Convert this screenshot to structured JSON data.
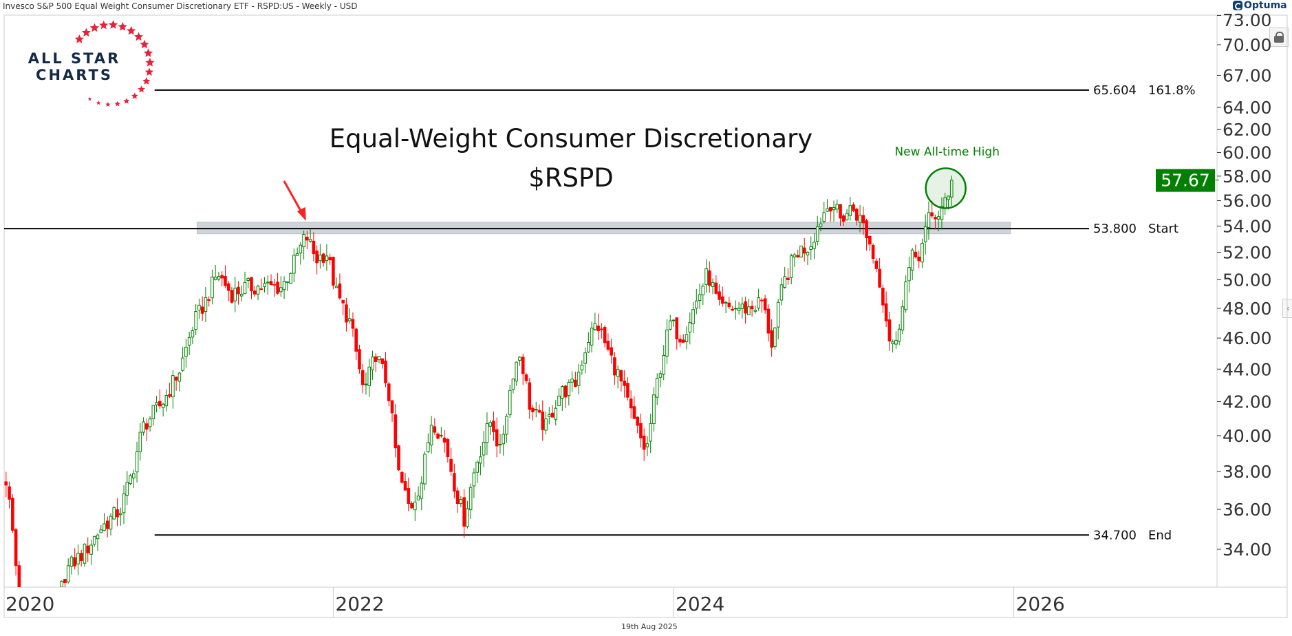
{
  "header": {
    "instrument": "Invesco S&P 500 Equal Weight Consumer Discretionary ETF - RSPD:US - Weekly - USD",
    "brand": "Optuma"
  },
  "logo": {
    "line1": "ALL STAR",
    "line2": "CHARTS"
  },
  "footer": {
    "date": "19th Aug 2025"
  },
  "colors": {
    "up": "#008000",
    "down": "#ff0000",
    "level": "#000000",
    "band": "#cfd4da",
    "accent_green": "#008000",
    "arrow": "#ff2020"
  },
  "chart_data": {
    "type": "candlestick",
    "title": "Equal-Weight Consumer Discretionary",
    "subtitle": "$RSPD",
    "frequency": "Weekly",
    "y_scale": "log",
    "ylim": [
      32,
      73
    ],
    "y_ticks": [
      34,
      36,
      38,
      40,
      42,
      44,
      46,
      48,
      50,
      52,
      54,
      56,
      58,
      60,
      62,
      64,
      67,
      70,
      73
    ],
    "y_tick_labels": [
      "34.00",
      "36.00",
      "38.00",
      "40.00",
      "42.00",
      "44.00",
      "46.00",
      "48.00",
      "50.00",
      "52.00",
      "54.00",
      "56.00",
      "58.00",
      "60.00",
      "62.00",
      "64.00",
      "67.00",
      "70.00",
      "73.00"
    ],
    "x_ticks": [
      2020,
      2022,
      2024,
      2026
    ],
    "x_tick_labels": [
      "2020",
      "2022",
      "2024",
      "2026"
    ],
    "last_price": 57.67,
    "last_price_label": "57.67",
    "levels": [
      {
        "value": 65.604,
        "value_label": "65.604",
        "name": "161.8%",
        "from": 2020.95
      },
      {
        "value": 53.8,
        "value_label": "53.800",
        "name": "Start",
        "from": 2020.0
      },
      {
        "value": 34.7,
        "value_label": "34.700",
        "name": "End",
        "from": 2020.95
      }
    ],
    "resistance_band": {
      "low": 53.4,
      "high": 54.3,
      "from": 2021.2,
      "to": 2025.98
    },
    "annotations": [
      {
        "type": "arrow",
        "text": "",
        "target_date": 2021.84,
        "target_price": 54.4
      },
      {
        "type": "circle",
        "text": "New All-time High",
        "date": 2025.6,
        "price": 57.0
      }
    ],
    "close_path": [
      [
        2020.0,
        37
      ],
      [
        2020.08,
        37.5
      ],
      [
        2020.15,
        32
      ],
      [
        2020.22,
        25
      ],
      [
        2020.3,
        29
      ],
      [
        2020.43,
        33
      ],
      [
        2020.55,
        34
      ],
      [
        2020.63,
        35
      ],
      [
        2020.75,
        36
      ],
      [
        2020.82,
        38
      ],
      [
        2020.88,
        40.5
      ],
      [
        2021.0,
        42
      ],
      [
        2021.1,
        44
      ],
      [
        2021.18,
        47
      ],
      [
        2021.25,
        48.5
      ],
      [
        2021.32,
        50.5
      ],
      [
        2021.4,
        49
      ],
      [
        2021.5,
        49.5
      ],
      [
        2021.6,
        49.5
      ],
      [
        2021.7,
        49.5
      ],
      [
        2021.78,
        51.5
      ],
      [
        2021.84,
        53.3
      ],
      [
        2021.9,
        51.5
      ],
      [
        2021.96,
        52
      ],
      [
        2022.02,
        49
      ],
      [
        2022.1,
        47
      ],
      [
        2022.18,
        42.5
      ],
      [
        2022.25,
        45
      ],
      [
        2022.32,
        43
      ],
      [
        2022.38,
        38
      ],
      [
        2022.45,
        36
      ],
      [
        2022.52,
        37.5
      ],
      [
        2022.58,
        41
      ],
      [
        2022.66,
        39.5
      ],
      [
        2022.72,
        37
      ],
      [
        2022.77,
        35.5
      ],
      [
        2022.84,
        38.5
      ],
      [
        2022.93,
        41
      ],
      [
        2022.98,
        39
      ],
      [
        2023.06,
        44
      ],
      [
        2023.1,
        45
      ],
      [
        2023.16,
        41.5
      ],
      [
        2023.25,
        40.5
      ],
      [
        2023.33,
        42.5
      ],
      [
        2023.42,
        43
      ],
      [
        2023.5,
        46
      ],
      [
        2023.55,
        47
      ],
      [
        2023.62,
        45
      ],
      [
        2023.68,
        43.5
      ],
      [
        2023.76,
        41
      ],
      [
        2023.84,
        39
      ],
      [
        2023.9,
        43
      ],
      [
        2023.98,
        47
      ],
      [
        2024.05,
        46
      ],
      [
        2024.12,
        48
      ],
      [
        2024.2,
        50.5
      ],
      [
        2024.27,
        48
      ],
      [
        2024.35,
        48
      ],
      [
        2024.45,
        48
      ],
      [
        2024.52,
        48.5
      ],
      [
        2024.58,
        45.5
      ],
      [
        2024.64,
        49.5
      ],
      [
        2024.72,
        52
      ],
      [
        2024.8,
        52.5
      ],
      [
        2024.88,
        55
      ],
      [
        2024.93,
        56
      ],
      [
        2024.98,
        54.5
      ],
      [
        2025.05,
        55.5
      ],
      [
        2025.12,
        54
      ],
      [
        2025.18,
        51.5
      ],
      [
        2025.22,
        49.5
      ],
      [
        2025.27,
        46
      ],
      [
        2025.31,
        45.5
      ],
      [
        2025.35,
        49
      ],
      [
        2025.4,
        51.5
      ],
      [
        2025.45,
        52
      ],
      [
        2025.5,
        54.5
      ],
      [
        2025.56,
        55
      ],
      [
        2025.61,
        56
      ],
      [
        2025.65,
        57.67
      ]
    ]
  }
}
